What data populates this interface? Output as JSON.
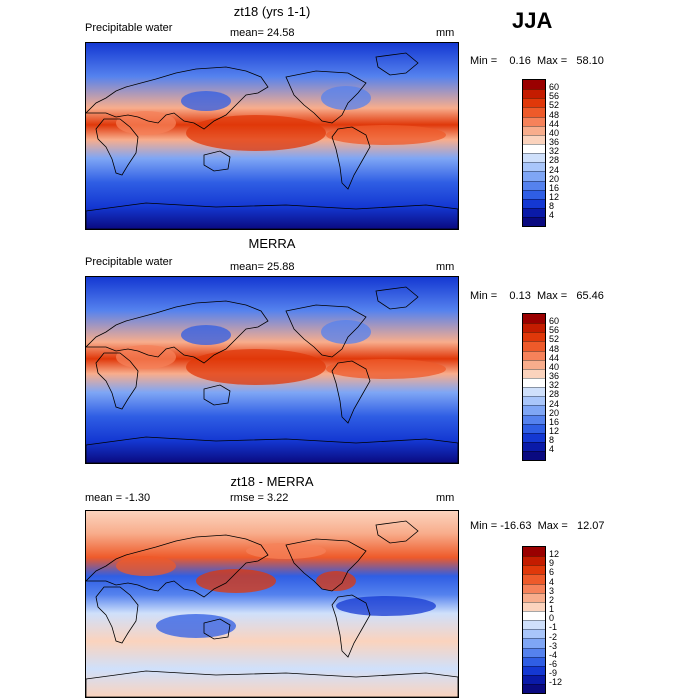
{
  "season": "JJA",
  "panels": [
    {
      "title": "zt18 (yrs 1-1)",
      "variable": "Precipitable water",
      "stat": "mean=  24.58",
      "unit": "mm",
      "minmax": "Min =    0.16  Max =   58.10",
      "levels": [
        "60",
        "56",
        "52",
        "48",
        "44",
        "40",
        "36",
        "32",
        "28",
        "24",
        "20",
        "16",
        "12",
        "8",
        "4"
      ],
      "colors": [
        "#9a0000",
        "#c41c00",
        "#e0380a",
        "#ee5a2a",
        "#f6825a",
        "#f8ad8c",
        "#fbd3bd",
        "#ffffff",
        "#cfe0fb",
        "#a9c6fa",
        "#7fa6f5",
        "#5582ee",
        "#2f5ee4",
        "#1438d2",
        "#0a1aa8",
        "#0a0a80"
      ],
      "kind": "abs1"
    },
    {
      "title": "MERRA",
      "variable": "Precipitable water",
      "stat": "mean=  25.88",
      "unit": "mm",
      "minmax": "Min =    0.13  Max =   65.46",
      "levels": [
        "60",
        "56",
        "52",
        "48",
        "44",
        "40",
        "36",
        "32",
        "28",
        "24",
        "20",
        "16",
        "12",
        "8",
        "4"
      ],
      "colors": [
        "#9a0000",
        "#c41c00",
        "#e0380a",
        "#ee5a2a",
        "#f6825a",
        "#f8ad8c",
        "#fbd3bd",
        "#ffffff",
        "#cfe0fb",
        "#a9c6fa",
        "#7fa6f5",
        "#5582ee",
        "#2f5ee4",
        "#1438d2",
        "#0a1aa8",
        "#0a0a80"
      ],
      "kind": "abs2"
    },
    {
      "title": "zt18 - MERRA",
      "variable": "mean =   -1.30",
      "stat": "rmse =    3.22",
      "unit": "mm",
      "minmax": "Min = -16.63  Max =   12.07",
      "levels": [
        "12",
        "9",
        "6",
        "4",
        "3",
        "2",
        "1",
        "0",
        "-1",
        "-2",
        "-3",
        "-4",
        "-6",
        "-9",
        "-12"
      ],
      "colors": [
        "#9a0000",
        "#c41c00",
        "#e0380a",
        "#ee5a2a",
        "#f6825a",
        "#f8ad8c",
        "#fbd3bd",
        "#ffffff",
        "#cfe0fb",
        "#a9c6fa",
        "#7fa6f5",
        "#5582ee",
        "#2f5ee4",
        "#1438d2",
        "#0a1aa8",
        "#0a0a80"
      ],
      "kind": "diff"
    }
  ]
}
